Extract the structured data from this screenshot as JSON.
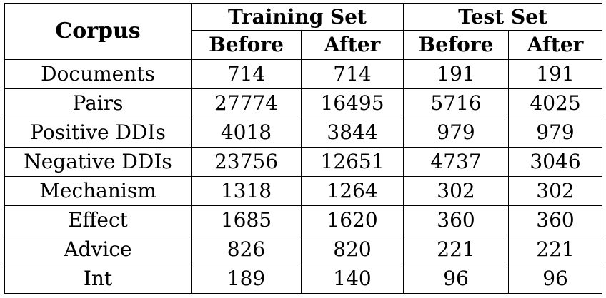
{
  "table": {
    "corpus_header": "Corpus",
    "groups": [
      {
        "label": "Training Set",
        "sub": [
          "Before",
          "After"
        ]
      },
      {
        "label": "Test Set",
        "sub": [
          "Before",
          "After"
        ]
      }
    ],
    "rows": [
      {
        "label": "Documents",
        "values": [
          "714",
          "714",
          "191",
          "191"
        ]
      },
      {
        "label": "Pairs",
        "values": [
          "27774",
          "16495",
          "5716",
          "4025"
        ]
      },
      {
        "label": "Positive DDIs",
        "values": [
          "4018",
          "3844",
          "979",
          "979"
        ]
      },
      {
        "label": "Negative DDIs",
        "values": [
          "23756",
          "12651",
          "4737",
          "3046"
        ]
      },
      {
        "label": "Mechanism",
        "values": [
          "1318",
          "1264",
          "302",
          "302"
        ]
      },
      {
        "label": "Effect",
        "values": [
          "1685",
          "1620",
          "360",
          "360"
        ]
      },
      {
        "label": "Advice",
        "values": [
          "826",
          "820",
          "221",
          "221"
        ]
      },
      {
        "label": "Int",
        "values": [
          "189",
          "140",
          "96",
          "96"
        ]
      }
    ]
  }
}
